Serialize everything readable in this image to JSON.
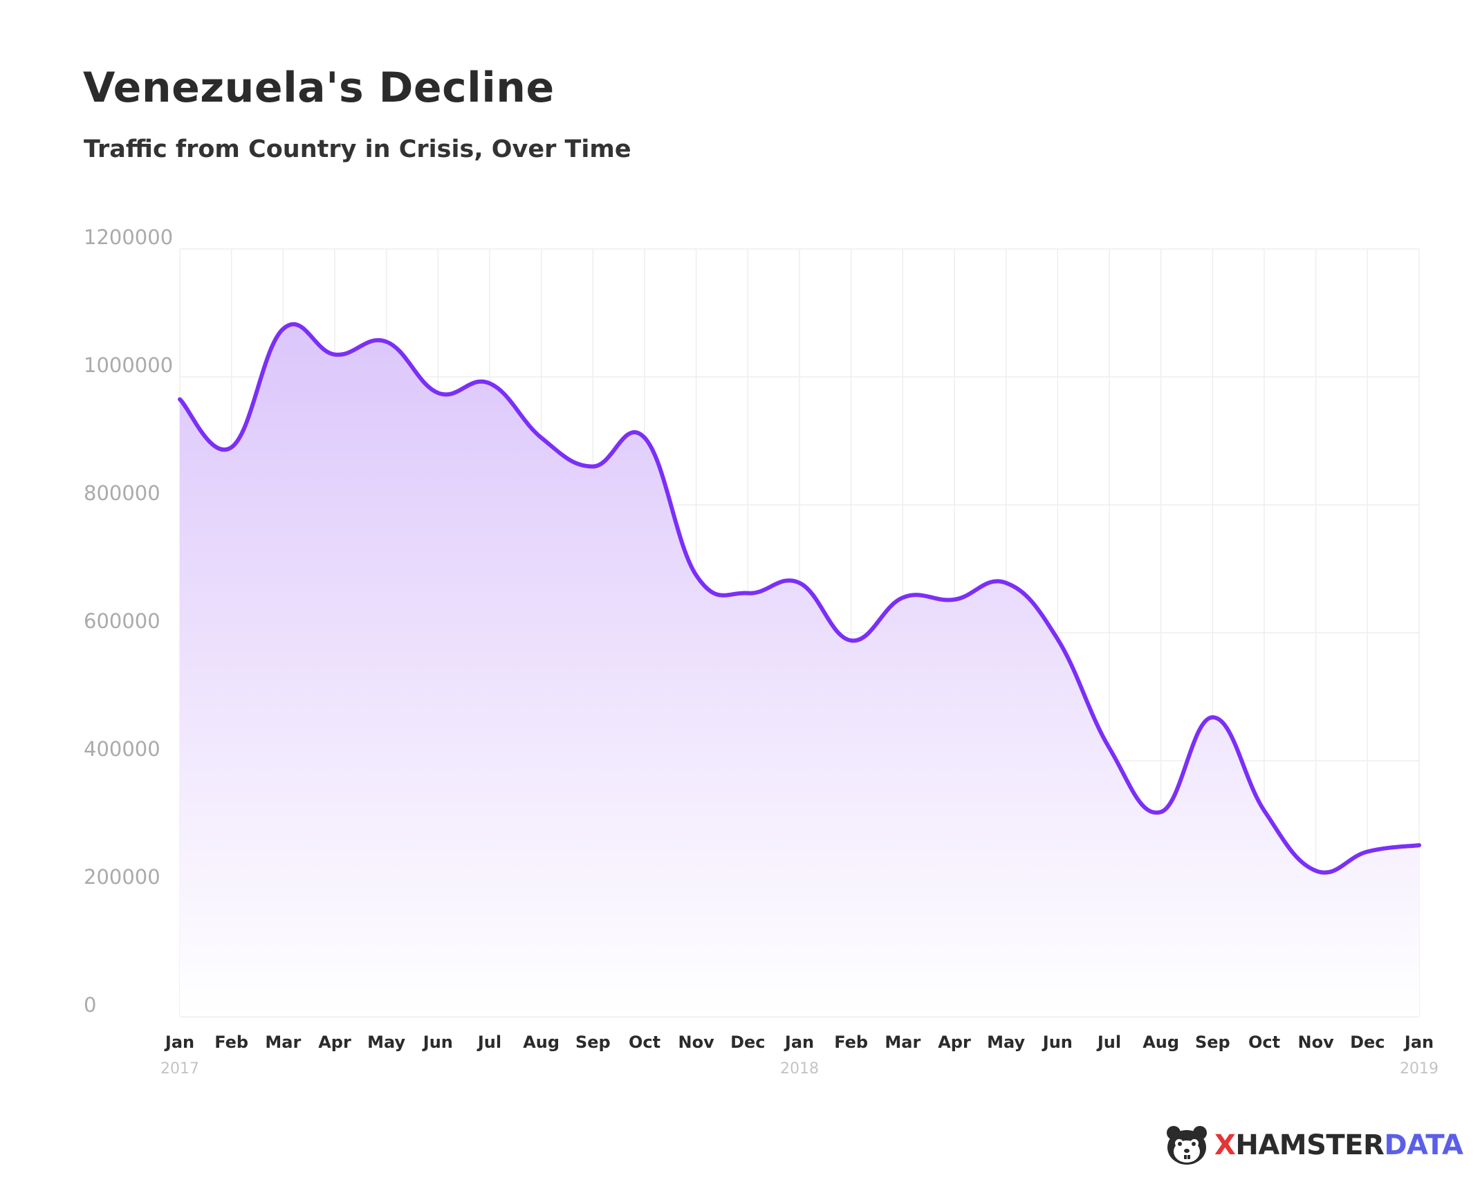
{
  "chart_data": {
    "type": "area",
    "title": "Venezuela's Decline",
    "subtitle": "Traffic from Country in Crisis, Over Time",
    "xlabel": "",
    "ylabel": "",
    "ylim": [
      0,
      1200000
    ],
    "yticks": [
      0,
      200000,
      400000,
      600000,
      800000,
      1000000,
      1200000
    ],
    "grid": true,
    "legend": "none",
    "categories": [
      "Jan",
      "Feb",
      "Mar",
      "Apr",
      "May",
      "Jun",
      "Jul",
      "Aug",
      "Sep",
      "Oct",
      "Nov",
      "Dec",
      "Jan",
      "Feb",
      "Mar",
      "Apr",
      "May",
      "Jun",
      "Jul",
      "Aug",
      "Sep",
      "Oct",
      "Nov",
      "Dec",
      "Jan"
    ],
    "years": [
      {
        "index": 0,
        "label": "2017"
      },
      {
        "index": 12,
        "label": "2018"
      },
      {
        "index": 24,
        "label": "2019"
      }
    ],
    "series": [
      {
        "values": [
          965000,
          890000,
          1075000,
          1035000,
          1055000,
          975000,
          990000,
          905000,
          860000,
          905000,
          690000,
          662000,
          678000,
          588000,
          655000,
          652000,
          678000,
          590000,
          420000,
          320000,
          468000,
          322000,
          228000,
          258000,
          268000
        ]
      }
    ],
    "colors": {
      "line": "#7b2ff7",
      "fill_top": "#dcc6fb",
      "fill_bottom": "#ffffff",
      "grid": "#eeeeee"
    }
  },
  "brand": {
    "icon": "hamster-logo-icon",
    "part1": "X",
    "part2": "HAMSTER",
    "part3": "DATA"
  }
}
